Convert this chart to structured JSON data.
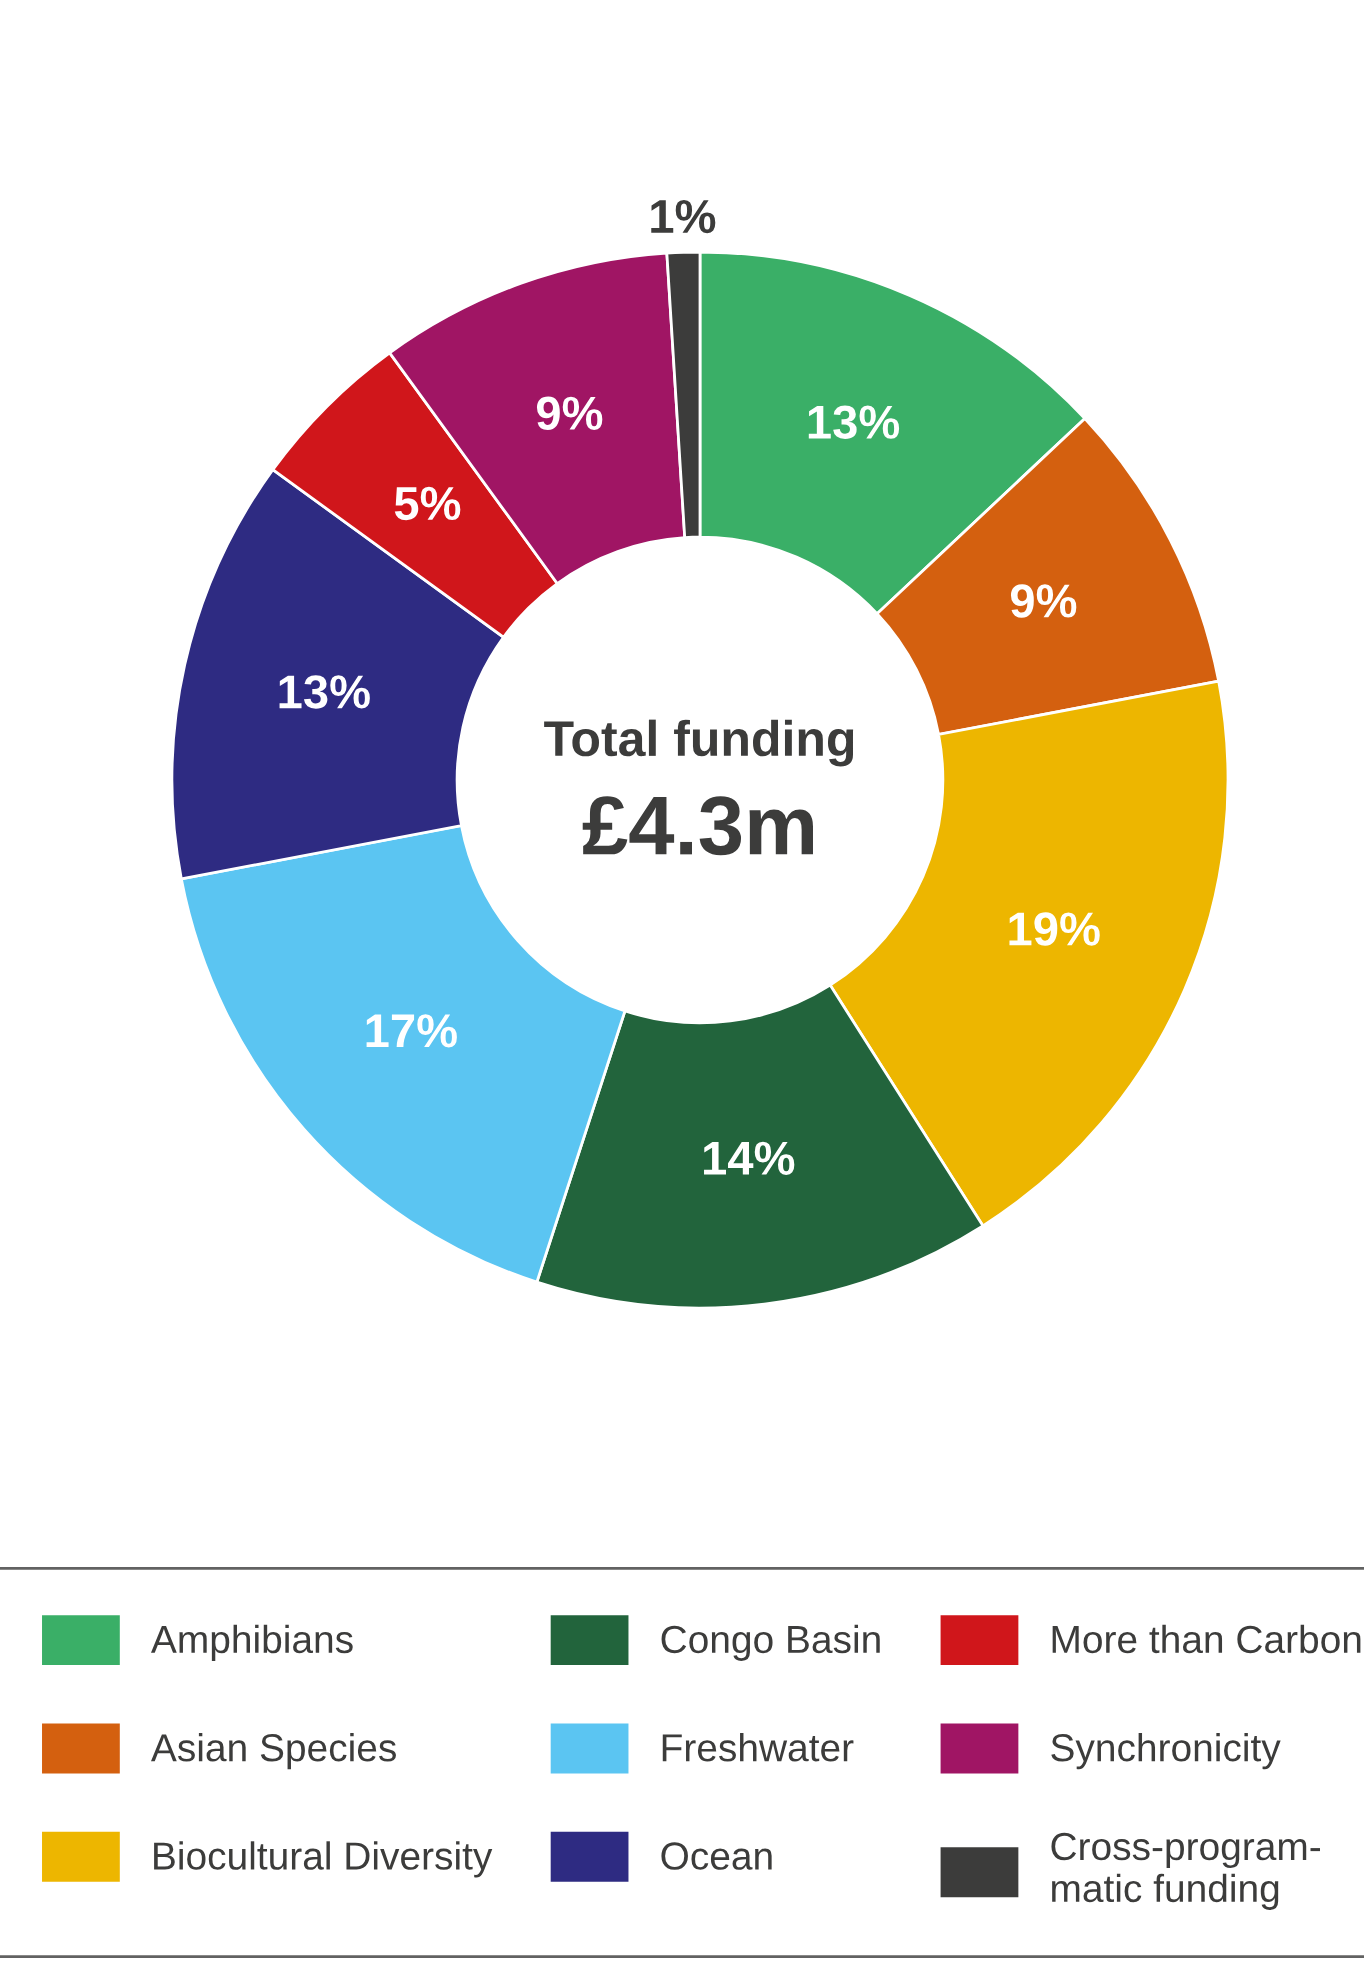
{
  "chart_data": {
    "type": "donut",
    "title": "Total funding",
    "subtitle": "£4.3m",
    "categories": [
      "Amphibians",
      "Asian Species",
      "Biocultural Diversity",
      "Congo Basin",
      "Freshwater",
      "Ocean",
      "More than Carbon",
      "Synchronicity",
      "Cross-program-\nmatic funding"
    ],
    "values": [
      13,
      9,
      19,
      14,
      17,
      13,
      5,
      9,
      1
    ],
    "colors": [
      "#3aaf67",
      "#d4600f",
      "#edb600",
      "#22643c",
      "#5bc5f2",
      "#2e2b82",
      "#d0161b",
      "#a01564",
      "#3c3c3b"
    ],
    "value_labels": [
      "13%",
      "9%",
      "19%",
      "14%",
      "17%",
      "13%",
      "5%",
      "9%",
      "1%"
    ],
    "legend": "bottom"
  }
}
